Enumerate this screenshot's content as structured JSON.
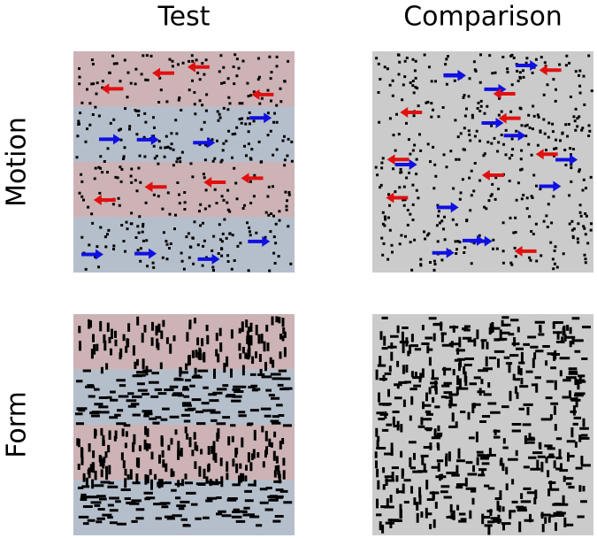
{
  "columns": [
    "Test",
    "Comparison"
  ],
  "rows": [
    "Motion",
    "Form"
  ]
}
